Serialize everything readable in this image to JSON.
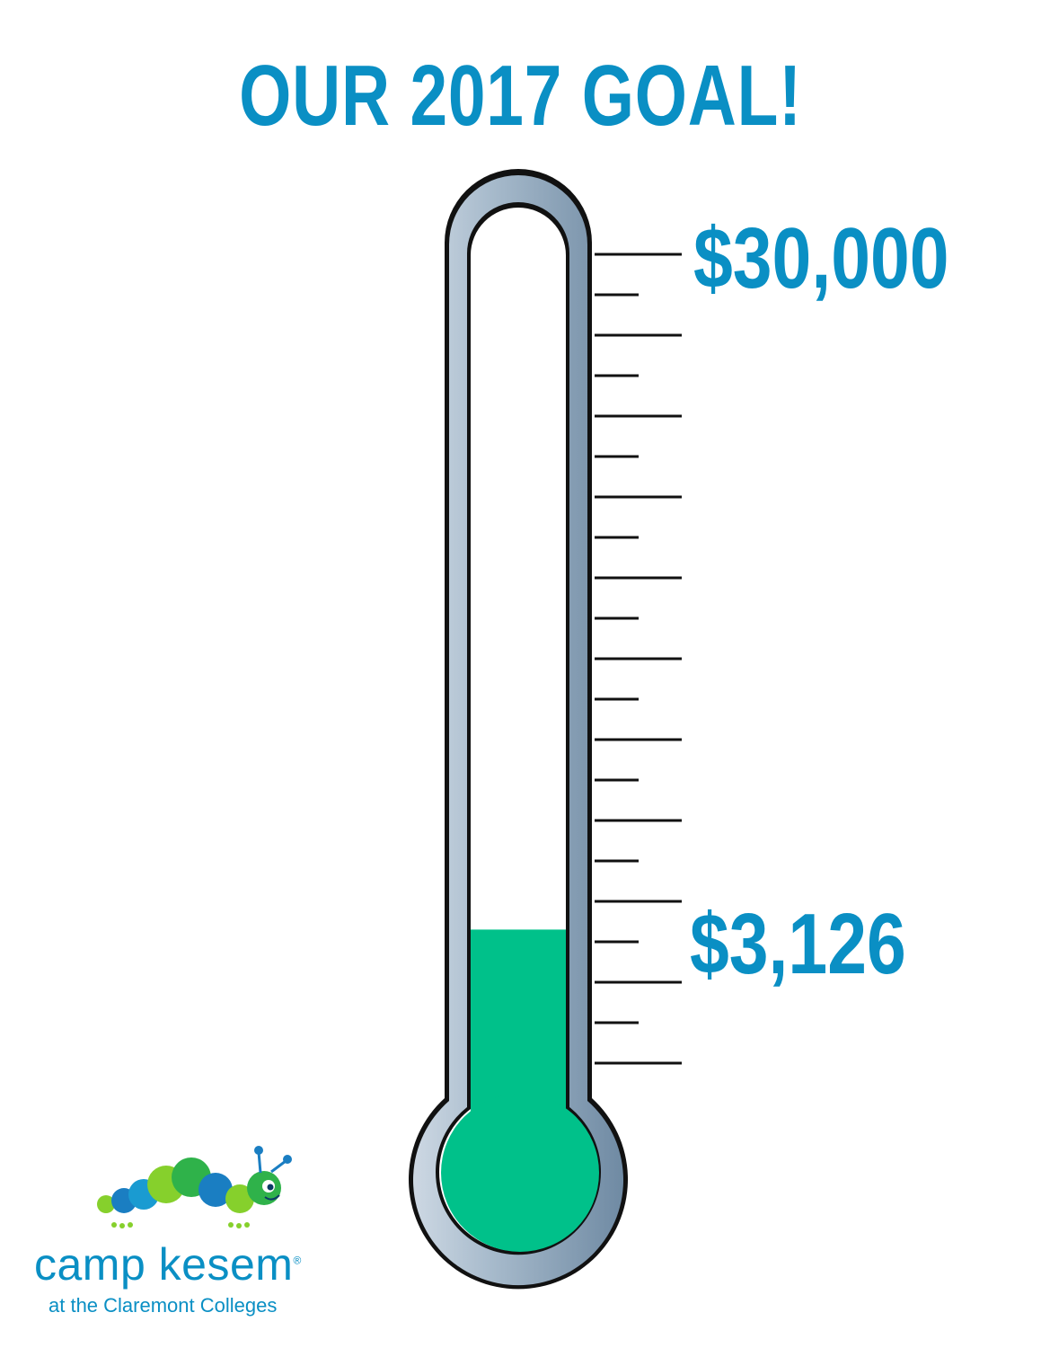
{
  "header": {
    "title": "OUR 2017 GOAL!"
  },
  "goal": {
    "label": "$30,000"
  },
  "raised": {
    "label": "$3,126",
    "fraction": 0.104
  },
  "brand": {
    "name": "camp kesem",
    "registered": "®",
    "subtitle": "at the Claremont Colleges"
  },
  "colors": {
    "accent": "#0a8fc4",
    "fill": "#00c18a",
    "tube": "#8fa6bd",
    "logo_green": "#86d02c",
    "logo_blue": "#1a7ec2"
  },
  "icons": [
    "caterpillar-logo-icon"
  ]
}
